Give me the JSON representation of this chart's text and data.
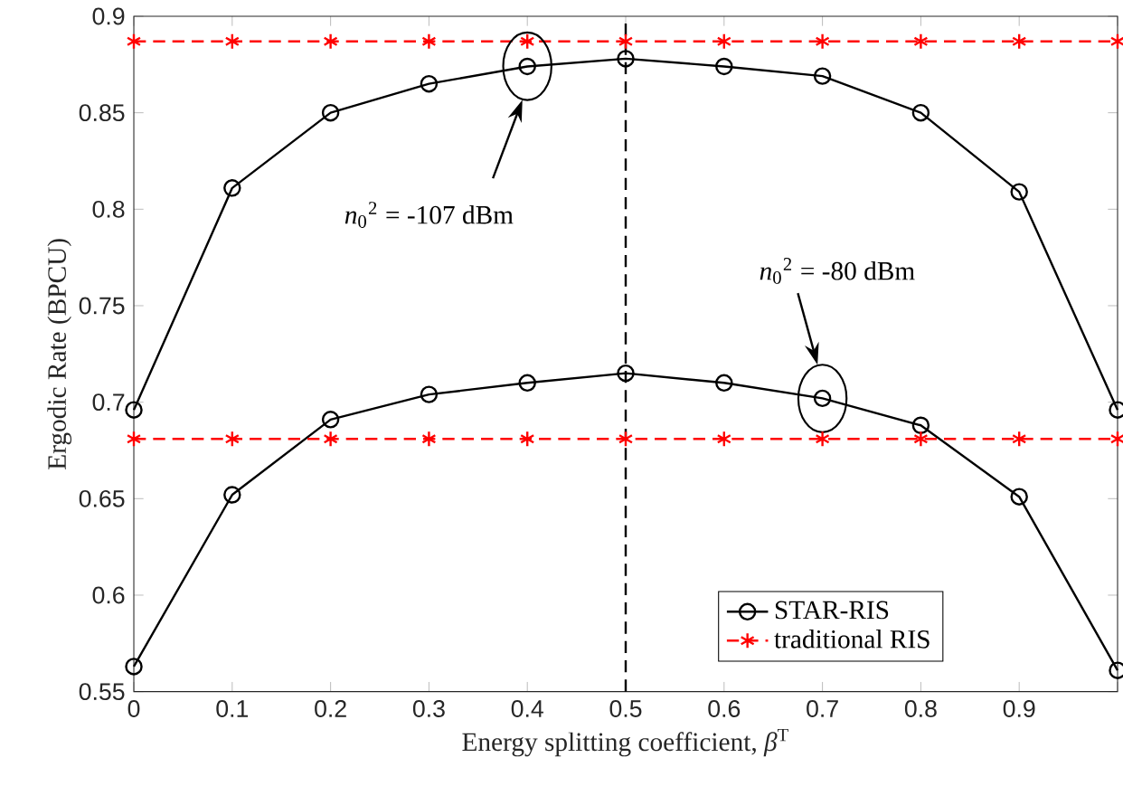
{
  "chart_data": {
    "type": "line",
    "xlabel": "Energy splitting coefficient,  *β*$^{T}$",
    "ylabel": "Ergodic Rate (BPCU)",
    "x": [
      0,
      0.1,
      0.2,
      0.3,
      0.4,
      0.5,
      0.6,
      0.7,
      0.8,
      0.9,
      1
    ],
    "series": [
      {
        "name": "STAR-RIS",
        "color": "#000000",
        "marker": "circle",
        "line_style": "solid",
        "values": [
          0.696,
          0.811,
          0.85,
          0.865,
          0.874,
          0.878,
          0.874,
          0.869,
          0.85,
          0.809,
          0.696
        ]
      },
      {
        "color": "#000000",
        "marker": "circle",
        "line_style": "solid",
        "values": [
          0.563,
          0.652,
          0.691,
          0.704,
          0.71,
          0.715,
          0.71,
          0.702,
          0.688,
          0.651,
          0.561
        ]
      },
      {
        "name": "traditional RIS",
        "color": "#ff0000",
        "marker": "cross",
        "line_style": "dashed",
        "values": [
          0.887,
          0.887,
          0.887,
          0.887,
          0.887,
          0.887,
          0.887,
          0.887,
          0.887,
          0.887,
          0.887
        ]
      },
      {
        "color": "#ff0000",
        "marker": "cross",
        "line_style": "dashed",
        "values": [
          0.681,
          0.681,
          0.681,
          0.681,
          0.681,
          0.681,
          0.681,
          0.681,
          0.681,
          0.681,
          0.681
        ]
      }
    ],
    "xlim": [
      0,
      1
    ],
    "ylim": [
      0.55,
      0.9
    ],
    "xticks": [
      0,
      0.1,
      0.2,
      0.3,
      0.4,
      0.5,
      0.6,
      0.7,
      0.8,
      0.9,
      {
        "value": 1,
        "label": null
      }
    ],
    "yticks": [
      0.55,
      0.6,
      0.65,
      0.7,
      0.75,
      0.8,
      0.85,
      0.9
    ],
    "ref_lines": [
      {
        "axis": "x",
        "value": 0.5,
        "color": "#000000",
        "line_style": "dashed"
      }
    ],
    "annotations": [
      "*n*$_{0}$$^{2}$ = -107 dBm",
      "*n*$_{0}$$^{2}$ = -80 dBm"
    ],
    "legend": "bottom right"
  }
}
